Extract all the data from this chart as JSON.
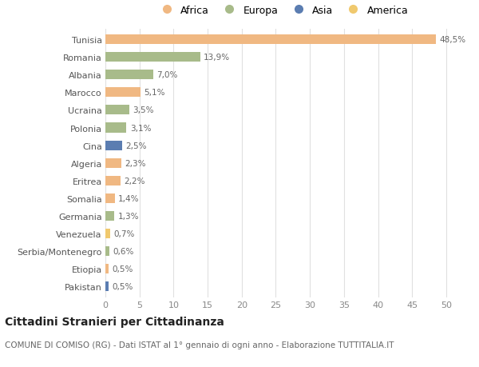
{
  "countries": [
    "Tunisia",
    "Romania",
    "Albania",
    "Marocco",
    "Ucraina",
    "Polonia",
    "Cina",
    "Algeria",
    "Eritrea",
    "Somalia",
    "Germania",
    "Venezuela",
    "Serbia/Montenegro",
    "Etiopia",
    "Pakistan"
  ],
  "values": [
    48.5,
    13.9,
    7.0,
    5.1,
    3.5,
    3.1,
    2.5,
    2.3,
    2.2,
    1.4,
    1.3,
    0.7,
    0.6,
    0.5,
    0.5
  ],
  "labels": [
    "48,5%",
    "13,9%",
    "7,0%",
    "5,1%",
    "3,5%",
    "3,1%",
    "2,5%",
    "2,3%",
    "2,2%",
    "1,4%",
    "1,3%",
    "0,7%",
    "0,6%",
    "0,5%",
    "0,5%"
  ],
  "continents": [
    "Africa",
    "Europa",
    "Europa",
    "Africa",
    "Europa",
    "Europa",
    "Asia",
    "Africa",
    "Africa",
    "Africa",
    "Europa",
    "America",
    "Europa",
    "Africa",
    "Asia"
  ],
  "colors": {
    "Africa": "#F0B882",
    "Europa": "#A8BB8A",
    "Asia": "#5B7DB1",
    "America": "#F0C96E"
  },
  "xlim": [
    0,
    52
  ],
  "xticks": [
    0,
    5,
    10,
    15,
    20,
    25,
    30,
    35,
    40,
    45,
    50
  ],
  "title": "Cittadini Stranieri per Cittadinanza",
  "subtitle": "COMUNE DI COMISO (RG) - Dati ISTAT al 1° gennaio di ogni anno - Elaborazione TUTTITALIA.IT",
  "bg_color": "#FFFFFF",
  "grid_color": "#E0E0E0",
  "bar_height": 0.55
}
